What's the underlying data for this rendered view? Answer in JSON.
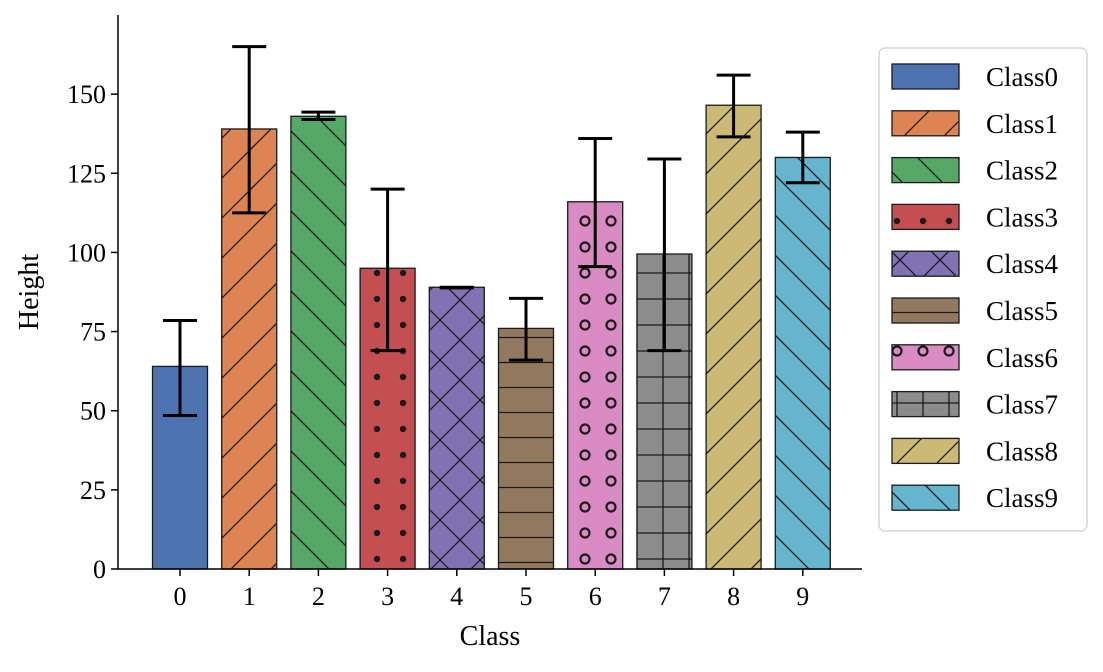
{
  "chart_data": {
    "type": "bar",
    "xlabel": "Class",
    "ylabel": "Height",
    "ylim": [
      0,
      175
    ],
    "yticks": [
      0,
      25,
      50,
      75,
      100,
      125,
      150
    ],
    "categories": [
      "0",
      "1",
      "2",
      "3",
      "4",
      "5",
      "6",
      "7",
      "8",
      "9"
    ],
    "values": [
      64,
      139,
      143,
      95,
      89,
      76,
      116,
      99.5,
      146.5,
      130
    ],
    "error_low": [
      48.5,
      112.5,
      142,
      69,
      88.8,
      66,
      95.5,
      69,
      136.5,
      122
    ],
    "error_high": [
      78.5,
      165,
      144.3,
      120,
      89,
      85.5,
      136,
      129.5,
      156,
      138
    ],
    "series_names": [
      "Class0",
      "Class1",
      "Class2",
      "Class3",
      "Class4",
      "Class5",
      "Class6",
      "Class7",
      "Class8",
      "Class9"
    ],
    "colors": [
      "#4c72b0",
      "#dd8452",
      "#55a868",
      "#c44e52",
      "#8172b3",
      "#937860",
      "#da8bc3",
      "#8c8c8c",
      "#ccb974",
      "#64b5cd"
    ],
    "hatches": [
      "none",
      "forward-diagonal",
      "back-diagonal",
      "dots",
      "cross-diagonal",
      "horizontal",
      "circles",
      "grid",
      "forward-diagonal",
      "back-diagonal"
    ],
    "legend_position": "right",
    "grid": false
  }
}
